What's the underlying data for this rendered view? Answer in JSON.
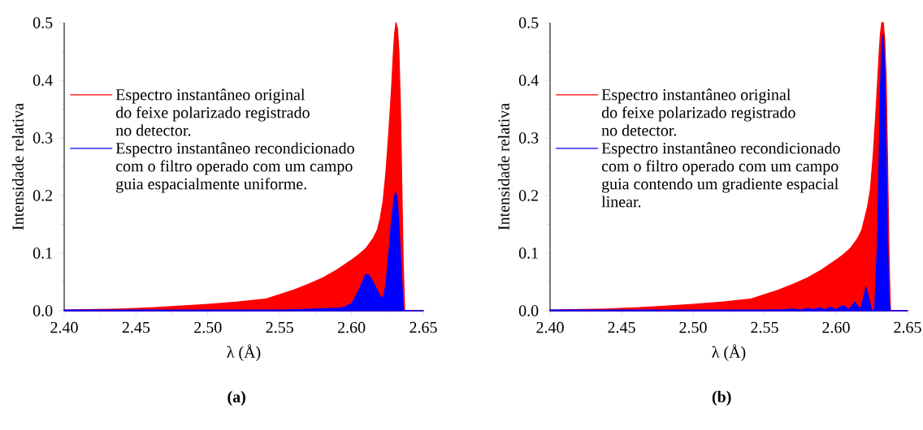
{
  "chart_data": [
    {
      "type": "area",
      "xlabel": "λ (Å)",
      "ylabel": "Intensidade relativa",
      "xlim": [
        2.4,
        2.65
      ],
      "ylim": [
        0,
        0.5
      ],
      "xticks": [
        {
          "value": 2.4,
          "label": "2.40"
        },
        {
          "value": 2.45,
          "label": "2.45"
        },
        {
          "value": 2.5,
          "label": "2.50"
        },
        {
          "value": 2.55,
          "label": "2.55"
        },
        {
          "value": 2.6,
          "label": "2.60"
        },
        {
          "value": 2.65,
          "label": "2.65"
        },
        {
          "value": 2.425,
          "label": null
        },
        {
          "value": 2.475,
          "label": null
        },
        {
          "value": 2.525,
          "label": null
        },
        {
          "value": 2.575,
          "label": null
        },
        {
          "value": 2.625,
          "label": null
        }
      ],
      "yticks": [
        {
          "value": 0,
          "label": "0.0"
        },
        {
          "value": 0.1,
          "label": "0.1"
        },
        {
          "value": 0.2,
          "label": "0.2"
        },
        {
          "value": 0.3,
          "label": "0.3"
        },
        {
          "value": 0.4,
          "label": "0.4"
        },
        {
          "value": 0.5,
          "label": "0.5"
        },
        {
          "value": 0.05,
          "label": null
        },
        {
          "value": 0.15,
          "label": null
        },
        {
          "value": 0.25,
          "label": null
        },
        {
          "value": 0.35,
          "label": null
        },
        {
          "value": 0.45,
          "label": null
        }
      ],
      "legend": "top left",
      "annotations": [
        "(a)"
      ],
      "series": [
        {
          "name": "Espectro instantâneo original do feixe polarizado registrado no detector.",
          "color": "#ff0000",
          "x": [
            2.4,
            2.42,
            2.44,
            2.46,
            2.48,
            2.5,
            2.52,
            2.54,
            2.56,
            2.57,
            2.58,
            2.59,
            2.6,
            2.605,
            2.61,
            2.615,
            2.618,
            2.62,
            2.622,
            2.624,
            2.626,
            2.628,
            2.629,
            2.63,
            2.631,
            2.632,
            2.633,
            2.634,
            2.635,
            2.636,
            2.637,
            2.65
          ],
          "values": [
            0.001,
            0.002,
            0.003,
            0.005,
            0.008,
            0.011,
            0.015,
            0.02,
            0.036,
            0.046,
            0.057,
            0.071,
            0.088,
            0.097,
            0.108,
            0.125,
            0.14,
            0.16,
            0.19,
            0.24,
            0.31,
            0.39,
            0.44,
            0.48,
            0.5,
            0.49,
            0.45,
            0.36,
            0.22,
            0.08,
            0,
            0
          ]
        },
        {
          "name": "Espectro instantâneo recondicionado com o filtro operado com um campo guia espacialmente uniforme.",
          "color": "#0000ff",
          "x": [
            2.4,
            2.5,
            2.55,
            2.565,
            2.575,
            2.585,
            2.59,
            2.595,
            2.6,
            2.603,
            2.606,
            2.608,
            2.61,
            2.612,
            2.615,
            2.618,
            2.62,
            2.622,
            2.624,
            2.626,
            2.628,
            2.63,
            2.631,
            2.632,
            2.633,
            2.634,
            2.635,
            2.636,
            2.637,
            2.65
          ],
          "values": [
            0.001,
            0.001,
            0.001,
            0.002,
            0.003,
            0.004,
            0.004,
            0.006,
            0.012,
            0.025,
            0.04,
            0.052,
            0.063,
            0.062,
            0.05,
            0.035,
            0.025,
            0.022,
            0.045,
            0.1,
            0.16,
            0.2,
            0.205,
            0.19,
            0.15,
            0.1,
            0.05,
            0.005,
            0,
            0
          ]
        }
      ]
    },
    {
      "type": "area",
      "xlabel": "λ (Å)",
      "ylabel": "Intensidade relativa",
      "xlim": [
        2.4,
        2.65
      ],
      "ylim": [
        0,
        0.5
      ],
      "xticks": [
        {
          "value": 2.4,
          "label": "2.40"
        },
        {
          "value": 2.45,
          "label": "2.45"
        },
        {
          "value": 2.5,
          "label": "2.50"
        },
        {
          "value": 2.55,
          "label": "2.55"
        },
        {
          "value": 2.6,
          "label": "2.60"
        },
        {
          "value": 2.65,
          "label": "2.65"
        },
        {
          "value": 2.425,
          "label": null
        },
        {
          "value": 2.475,
          "label": null
        },
        {
          "value": 2.525,
          "label": null
        },
        {
          "value": 2.575,
          "label": null
        },
        {
          "value": 2.625,
          "label": null
        }
      ],
      "yticks": [
        {
          "value": 0,
          "label": "0.0"
        },
        {
          "value": 0.1,
          "label": "0.1"
        },
        {
          "value": 0.2,
          "label": "0.2"
        },
        {
          "value": 0.3,
          "label": "0.3"
        },
        {
          "value": 0.4,
          "label": "0.4"
        },
        {
          "value": 0.5,
          "label": "0.5"
        },
        {
          "value": 0.05,
          "label": null
        },
        {
          "value": 0.15,
          "label": null
        },
        {
          "value": 0.25,
          "label": null
        },
        {
          "value": 0.35,
          "label": null
        },
        {
          "value": 0.45,
          "label": null
        }
      ],
      "legend": "top left",
      "annotations": [
        "(b)"
      ],
      "series": [
        {
          "name": "Espectro instantâneo original do feixe polarizado registrado no detector.",
          "color": "#ff0000",
          "x": [
            2.4,
            2.42,
            2.44,
            2.46,
            2.48,
            2.5,
            2.52,
            2.54,
            2.56,
            2.57,
            2.58,
            2.59,
            2.6,
            2.605,
            2.61,
            2.615,
            2.618,
            2.62,
            2.622,
            2.624,
            2.626,
            2.628,
            2.63,
            2.631,
            2.632,
            2.633,
            2.634,
            2.635,
            2.636,
            2.637,
            2.638,
            2.65
          ],
          "values": [
            0.001,
            0.002,
            0.003,
            0.005,
            0.008,
            0.011,
            0.015,
            0.02,
            0.036,
            0.046,
            0.057,
            0.071,
            0.088,
            0.097,
            0.108,
            0.125,
            0.14,
            0.16,
            0.18,
            0.21,
            0.27,
            0.35,
            0.44,
            0.48,
            0.5,
            0.5,
            0.47,
            0.4,
            0.26,
            0.1,
            0,
            0
          ]
        },
        {
          "name": "Espectro instantâneo recondicionado com o filtro operado com um campo guia contendo um gradiente espacial linear.",
          "color": "#0000ff",
          "x": [
            2.4,
            2.55,
            2.565,
            2.57,
            2.575,
            2.58,
            2.584,
            2.588,
            2.592,
            2.596,
            2.6,
            2.605,
            2.609,
            2.613,
            2.617,
            2.619,
            2.621,
            2.623,
            2.625,
            2.627,
            2.629,
            2.63,
            2.631,
            2.632,
            2.633,
            2.634,
            2.635,
            2.636,
            2.637,
            2.638,
            2.65
          ],
          "values": [
            0.001,
            0.001,
            0.002,
            0.003,
            0.001,
            0.004,
            0.002,
            0.005,
            0.002,
            0.006,
            0.002,
            0.009,
            0.002,
            0.015,
            0.002,
            0.02,
            0.041,
            0.02,
            0.001,
            0,
            0.12,
            0.25,
            0.38,
            0.46,
            0.48,
            0.42,
            0.28,
            0.12,
            0.02,
            0,
            0
          ]
        }
      ]
    }
  ]
}
